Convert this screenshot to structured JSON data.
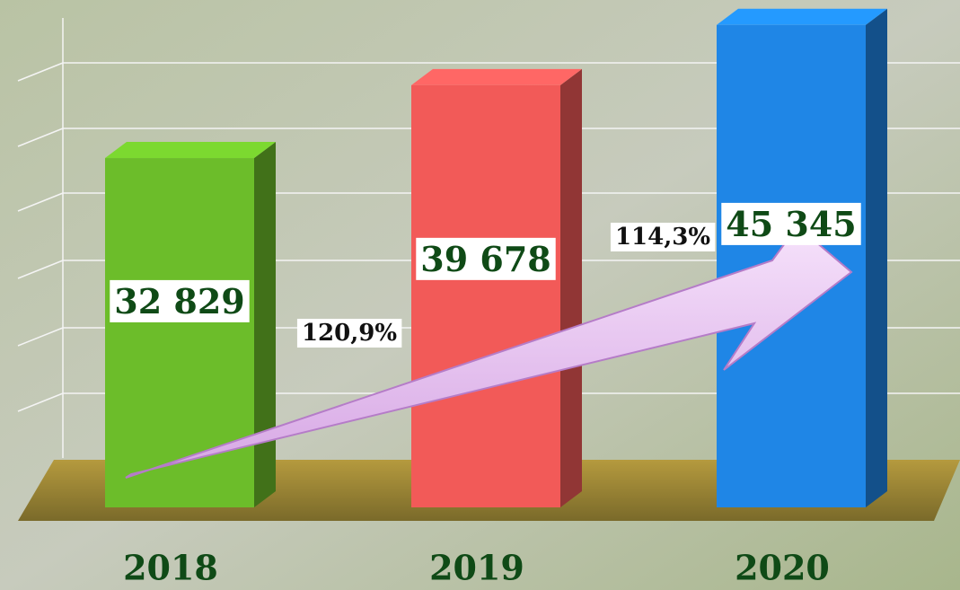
{
  "chart_data": {
    "type": "bar",
    "categories": [
      "2018",
      "2019",
      "2020"
    ],
    "values": [
      32829,
      39678,
      45345
    ],
    "value_labels": [
      "32 829",
      "39 678",
      "45 345"
    ],
    "colors": [
      "#6cbd2a",
      "#f25a58",
      "#1f86e6"
    ],
    "annotations": [
      "120,9%",
      "114,3%"
    ],
    "ylim": [
      0,
      46000
    ]
  }
}
